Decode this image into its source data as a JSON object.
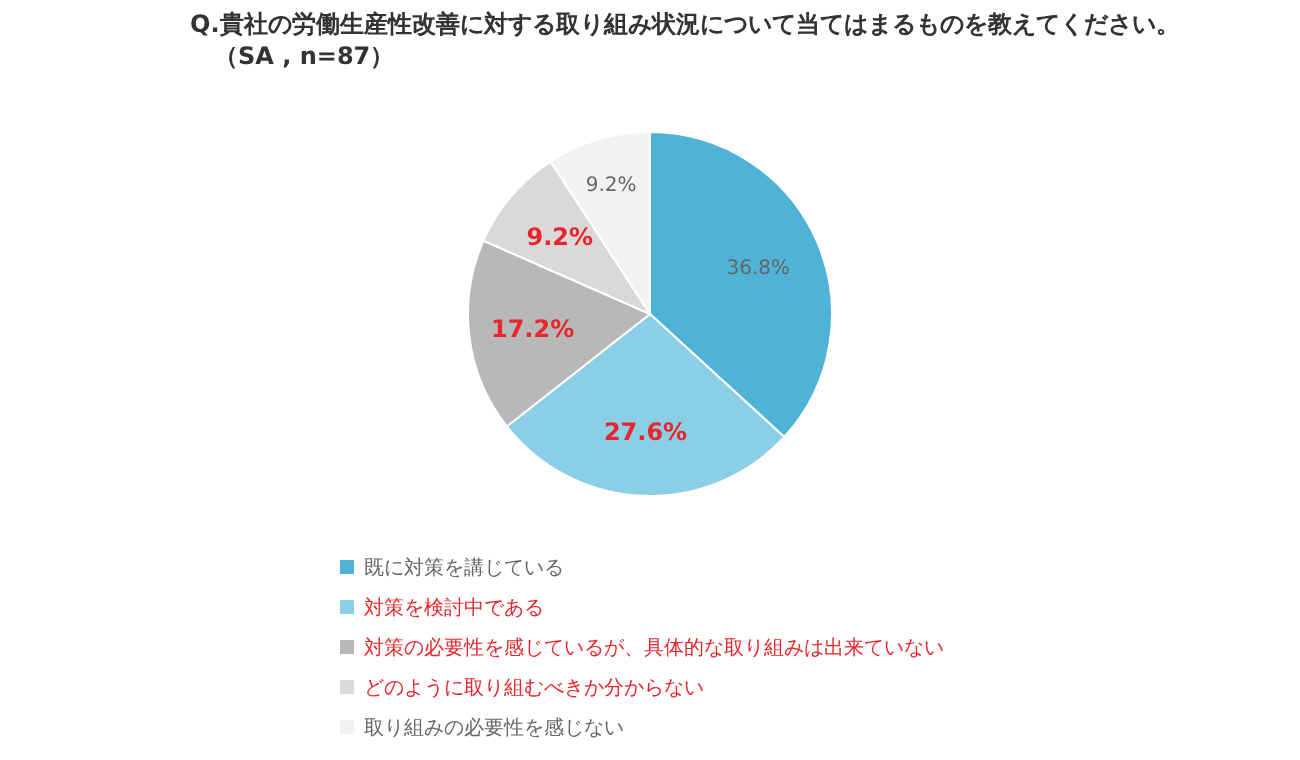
{
  "chart_data": {
    "type": "pie",
    "title": "Q.貴社の労働生産性改善に対する取り組み状況について当てはまるものを教えてください。",
    "subtitle": "（SA , n=87）",
    "categories": [
      "既に対策を講じている",
      "対策を検討中である",
      "対策の必要性を感じているが、具体的な取り組みは出来ていない",
      "どのように取り組むべきか分からない",
      "取り組みの必要性を感じない"
    ],
    "values": [
      36.8,
      27.6,
      17.2,
      9.2,
      9.2
    ],
    "colors": [
      "#4eb3d7",
      "#8bcfe6",
      "#b8b8b8",
      "#d9d9d9",
      "#f2f2f2"
    ],
    "value_labels": [
      "36.8%",
      "27.6%",
      "17.2%",
      "9.2%",
      "9.2%"
    ],
    "legend": "bottom"
  }
}
